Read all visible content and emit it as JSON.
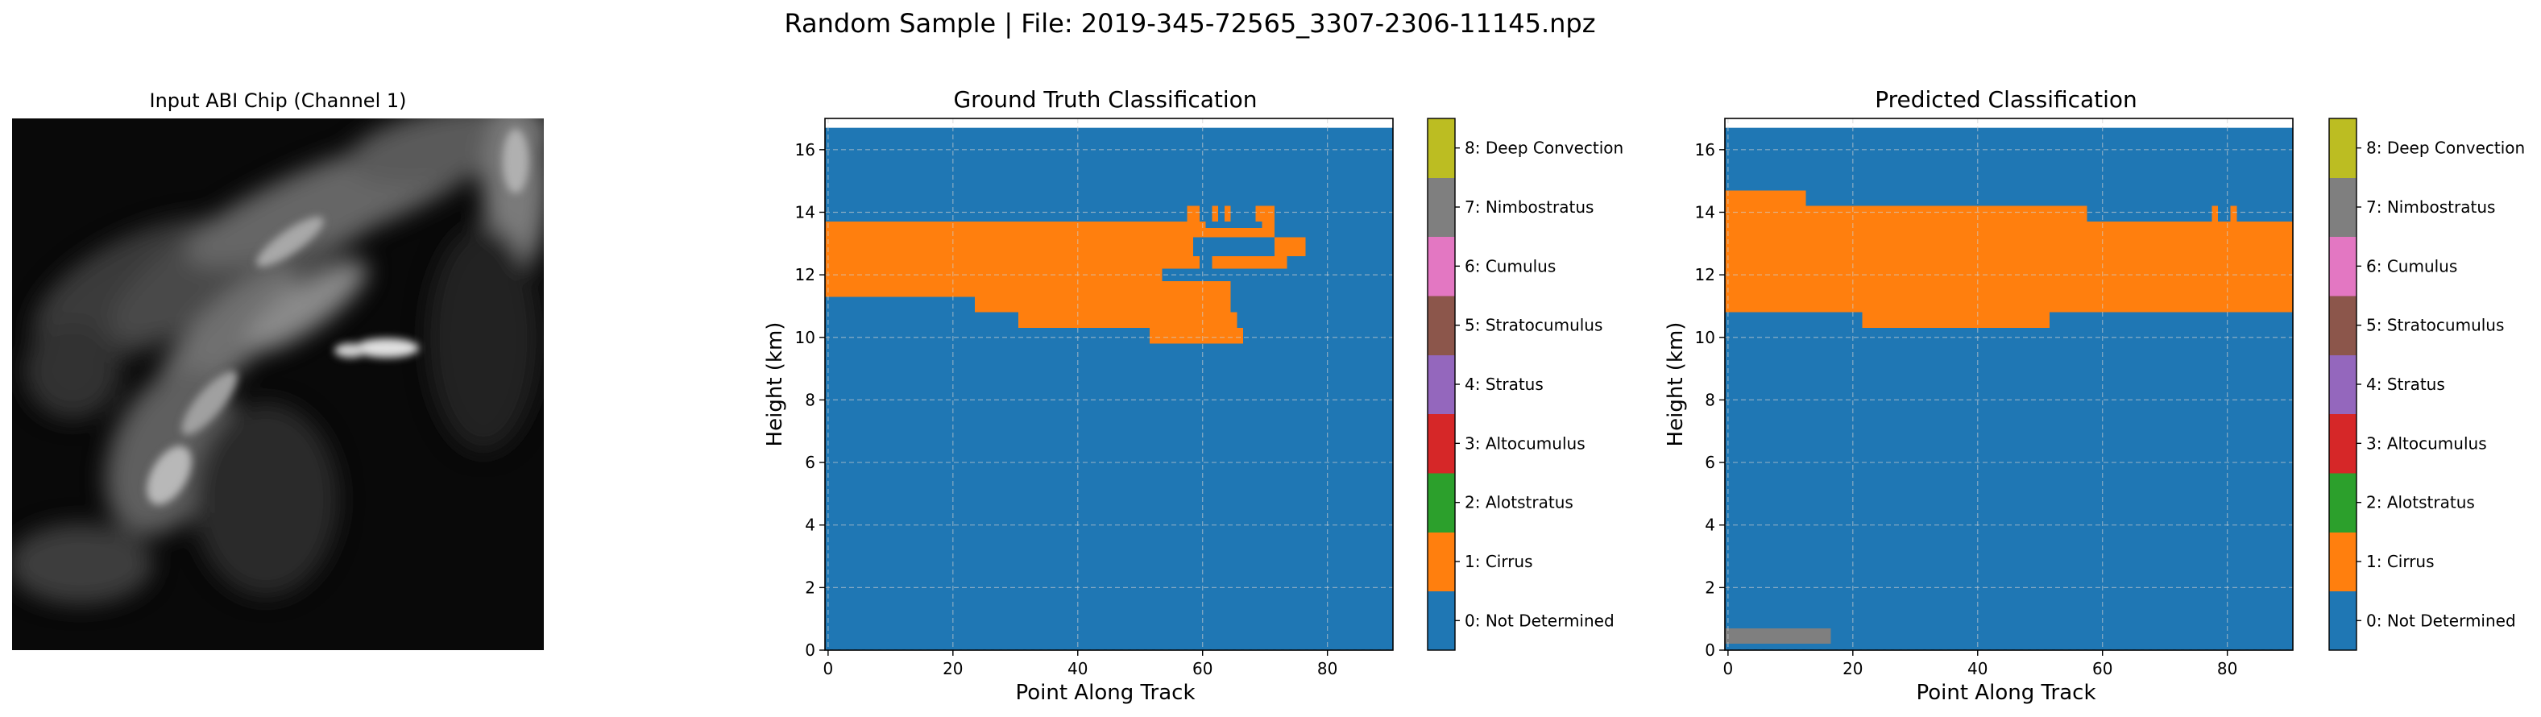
{
  "figure": {
    "suptitle": "Random Sample | File: 2019-345-72565_3307-2306-11145.npz"
  },
  "input_panel": {
    "title": "Input ABI Chip (Channel 1)"
  },
  "class_colors": [
    "#1f77b4",
    "#ff7f0e",
    "#2ca02c",
    "#d62728",
    "#9467bd",
    "#8c564b",
    "#e377c2",
    "#7f7f7f",
    "#bcbd22",
    "#17becf"
  ],
  "class_labels": [
    "0: Not Determined",
    "1: Cirrus",
    "2: Alotstratus",
    "3: Altocumulus",
    "4: Stratus",
    "5: Stratocumulus",
    "6: Cumulus",
    "7: Nimbostratus",
    "8: Deep Convection"
  ],
  "chart_data": [
    {
      "type": "heatmap",
      "title": "Ground Truth Classification",
      "xlabel": "Point Along Track",
      "ylabel": "Height (km)",
      "xlim": [
        -0.5,
        90.5
      ],
      "ylim": [
        0,
        17
      ],
      "xticks": [
        0,
        20,
        40,
        60,
        80
      ],
      "yticks": [
        0,
        2,
        4,
        6,
        8,
        10,
        12,
        14,
        16
      ],
      "grid": true,
      "background_class": 0,
      "data_top": 16.7,
      "regions": [
        {
          "class": 1,
          "x": [
            -0.5,
            53.5
          ],
          "y": [
            11.8,
            13.7
          ]
        },
        {
          "class": 1,
          "x": [
            53.5,
            58.5
          ],
          "y": [
            13.2,
            13.7
          ]
        },
        {
          "class": 1,
          "x": [
            58.5,
            60.5
          ],
          "y": [
            13.2,
            13.7
          ]
        },
        {
          "class": 1,
          "x": [
            60.5,
            69.5
          ],
          "y": [
            13.2,
            13.5
          ]
        },
        {
          "class": 1,
          "x": [
            69.5,
            71.5
          ],
          "y": [
            13.2,
            13.7
          ]
        },
        {
          "class": 1,
          "x": [
            71.5,
            76.5
          ],
          "y": [
            12.6,
            13.2
          ]
        },
        {
          "class": 1,
          "x": [
            53.5,
            58.5
          ],
          "y": [
            12.6,
            13.2
          ]
        },
        {
          "class": 1,
          "x": [
            61.5,
            73.5
          ],
          "y": [
            12.2,
            12.6
          ]
        },
        {
          "class": 1,
          "x": [
            53.5,
            59.5
          ],
          "y": [
            12.2,
            12.6
          ]
        },
        {
          "class": 1,
          "x": [
            51.5,
            64.5
          ],
          "y": [
            11.3,
            11.8
          ]
        },
        {
          "class": 1,
          "x": [
            -0.5,
            5.5
          ],
          "y": [
            11.3,
            11.8
          ]
        },
        {
          "class": 1,
          "x": [
            9.5,
            51.5
          ],
          "y": [
            11.3,
            11.8
          ]
        },
        {
          "class": 1,
          "x": [
            5.5,
            9.5
          ],
          "y": [
            11.3,
            11.8
          ]
        },
        {
          "class": 1,
          "x": [
            23.5,
            64.5
          ],
          "y": [
            10.8,
            11.3
          ]
        },
        {
          "class": 1,
          "x": [
            30.5,
            65.5
          ],
          "y": [
            10.3,
            10.8
          ]
        },
        {
          "class": 1,
          "x": [
            51.5,
            66.5
          ],
          "y": [
            9.8,
            10.3
          ]
        },
        {
          "class": 1,
          "x": [
            57.5,
            59.5
          ],
          "y": [
            13.7,
            14.2
          ]
        },
        {
          "class": 1,
          "x": [
            61.5,
            62.5
          ],
          "y": [
            13.7,
            14.2
          ]
        },
        {
          "class": 1,
          "x": [
            63.5,
            64.5
          ],
          "y": [
            13.7,
            14.2
          ]
        },
        {
          "class": 1,
          "x": [
            68.5,
            71.5
          ],
          "y": [
            13.7,
            14.2
          ]
        },
        {
          "class": 1,
          "x": [
            5.5,
            9.5
          ],
          "y": [
            11.8,
            11.9
          ]
        }
      ]
    },
    {
      "type": "heatmap",
      "title": "Predicted Classification",
      "xlabel": "Point Along Track",
      "ylabel": "Height (km)",
      "xlim": [
        -0.5,
        90.5
      ],
      "ylim": [
        0,
        17
      ],
      "xticks": [
        0,
        20,
        40,
        60,
        80
      ],
      "yticks": [
        0,
        2,
        4,
        6,
        8,
        10,
        12,
        14,
        16
      ],
      "grid": true,
      "background_class": 0,
      "data_top": 16.7,
      "regions": [
        {
          "class": 1,
          "x": [
            -0.5,
            90.5
          ],
          "y": [
            10.8,
            13.7
          ]
        },
        {
          "class": 1,
          "x": [
            -0.5,
            12.5
          ],
          "y": [
            13.7,
            14.7
          ]
        },
        {
          "class": 1,
          "x": [
            12.5,
            57.5
          ],
          "y": [
            13.7,
            14.2
          ]
        },
        {
          "class": 1,
          "x": [
            77.5,
            78.5
          ],
          "y": [
            13.7,
            14.2
          ]
        },
        {
          "class": 1,
          "x": [
            80.5,
            81.5
          ],
          "y": [
            13.7,
            14.2
          ]
        },
        {
          "class": 1,
          "x": [
            88.5,
            90.5
          ],
          "y": [
            11.2,
            11.3
          ]
        },
        {
          "class": 1,
          "x": [
            88.5,
            90.5
          ],
          "y": [
            10.8,
            11.2
          ]
        },
        {
          "class": 1,
          "x": [
            21.5,
            51.5
          ],
          "y": [
            10.3,
            10.8
          ]
        },
        {
          "class": 7,
          "x": [
            -0.5,
            16.5
          ],
          "y": [
            0.2,
            0.7
          ]
        }
      ]
    }
  ]
}
